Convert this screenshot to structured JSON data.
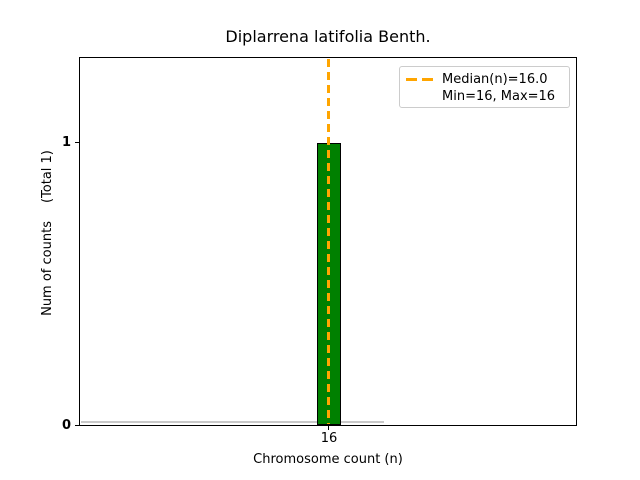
{
  "title": "Diplarrena latifolia Benth.",
  "axes": {
    "xlabel": "Chromosome count (n)",
    "ylabel_main": "Num of counts",
    "ylabel_total": "(Total 1)",
    "ytick_1": "1",
    "ytick_0": "0",
    "xtick_16": "16"
  },
  "legend": {
    "median_label": "Median(n)=16.0",
    "minmax_label": "Min=16, Max=16"
  },
  "colors": {
    "bar_fill": "#008000",
    "bar_edge": "#000000",
    "median_line": "#ffa500",
    "zero_height_bars": "#c9c9c9",
    "legend_border": "#cccccc"
  },
  "chart_data": {
    "type": "bar",
    "title": "Diplarrena latifolia Benth.",
    "xlabel": "Chromosome count (n)",
    "ylabel": "Num of counts    (Total 1)",
    "categories": [
      "16"
    ],
    "values": [
      1
    ],
    "total_counts": 1,
    "median_n": 16.0,
    "min_n": 16,
    "max_n": 16,
    "xticks": [
      "16"
    ],
    "yticks": [
      0,
      1
    ],
    "ylim": [
      0,
      1.3
    ],
    "grid": false,
    "legend_position": "upper right",
    "legend_entries": [
      "Median(n)=16.0",
      "Min=16, Max=16"
    ],
    "bar_color": "#008000",
    "median_line_style": "dashed",
    "median_line_color": "#ffa500"
  }
}
